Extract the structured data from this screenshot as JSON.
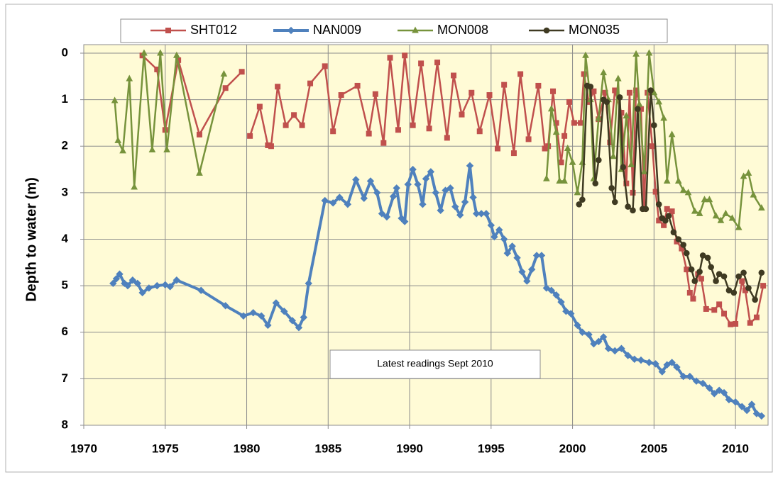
{
  "chart_data": {
    "type": "line",
    "y_label": "Depth to water  (m)",
    "annotation": "Latest readings  Sept 2010",
    "xlim": [
      1970,
      2012
    ],
    "xticks": [
      1970,
      1975,
      1980,
      1985,
      1990,
      1995,
      2000,
      2005,
      2010
    ],
    "ylim": [
      0,
      8
    ],
    "yticks": [
      0,
      1,
      2,
      3,
      4,
      5,
      6,
      7,
      8
    ],
    "y_inverted": true,
    "grid": true,
    "legend": "top",
    "series": [
      {
        "name": "SHT012",
        "color": "#c0504d",
        "marker": "square",
        "x": [
          1973.6,
          1974.5,
          1975.0,
          1975.8,
          1977.1,
          1978.7,
          1979.7,
          null,
          1980.2,
          1980.8,
          1981.3,
          1981.5,
          1981.9,
          1982.4,
          1982.9,
          1983.4,
          1983.9,
          1984.8,
          1985.3,
          1985.8,
          1986.8,
          1987.5,
          1987.9,
          1988.4,
          1988.8,
          1989.3,
          1989.7,
          1990.2,
          1990.7,
          1991.2,
          1991.7,
          1992.3,
          1992.7,
          1993.2,
          1993.8,
          1994.3,
          1994.9,
          1995.4,
          1995.8,
          1996.4,
          1996.8,
          1997.3,
          1997.9,
          1998.3,
          1998.5,
          1998.8,
          1999.0,
          1999.3,
          1999.5,
          1999.8,
          2000.1,
          2000.5,
          2000.7,
          2001.0,
          2001.3,
          2001.6,
          2002.0,
          2002.3,
          2002.6,
          2003.0,
          2003.3,
          2003.5,
          2003.7,
          2003.9,
          2004.2,
          2004.4,
          2004.6,
          2004.9,
          2005.1,
          2005.3,
          2005.6,
          2005.8,
          2006.1,
          2006.4,
          2006.7,
          2007.0,
          2007.2,
          2007.4,
          2007.7,
          2007.9,
          2008.2,
          2008.7,
          2009.0,
          2009.3,
          2009.7,
          2010.0,
          2010.4,
          2010.6,
          2010.9,
          2011.3,
          2011.7
        ],
        "values": [
          0.05,
          0.35,
          1.65,
          0.15,
          1.75,
          0.75,
          0.4,
          null,
          1.78,
          1.15,
          1.98,
          2.0,
          0.72,
          1.55,
          1.33,
          1.55,
          0.65,
          0.28,
          1.68,
          0.9,
          0.7,
          1.73,
          0.88,
          1.93,
          0.1,
          1.65,
          0.05,
          1.55,
          0.22,
          1.62,
          0.2,
          1.82,
          0.48,
          1.32,
          0.85,
          1.68,
          0.9,
          2.05,
          0.68,
          2.15,
          0.45,
          1.85,
          0.7,
          2.05,
          2.0,
          0.82,
          1.5,
          2.35,
          1.78,
          1.05,
          1.5,
          1.5,
          0.45,
          1.05,
          0.82,
          1.42,
          0.85,
          1.92,
          0.8,
          1.28,
          2.8,
          0.85,
          3.0,
          0.8,
          1.2,
          3.35,
          0.85,
          2.0,
          2.98,
          3.6,
          3.7,
          3.35,
          3.4,
          4.05,
          4.2,
          4.65,
          5.15,
          5.28,
          4.75,
          4.85,
          5.5,
          5.52,
          5.4,
          5.6,
          5.83,
          5.82,
          4.9,
          5.1,
          5.8,
          5.68,
          5.0
        ]
      },
      {
        "name": "NAN009",
        "color": "#4f81bd",
        "marker": "diamond",
        "x": [
          1971.8,
          1972.0,
          1972.2,
          1972.5,
          1972.7,
          1973.0,
          1973.3,
          1973.6,
          1974.0,
          1974.5,
          1975.0,
          1975.3,
          1975.7,
          1977.2,
          1978.7,
          1979.8,
          1980.4,
          1980.9,
          1981.3,
          1981.8,
          1982.3,
          1982.8,
          1983.2,
          1983.5,
          1983.8,
          1984.8,
          1985.3,
          1985.7,
          1986.2,
          1986.7,
          1987.2,
          1987.6,
          1988.0,
          1988.3,
          1988.6,
          1989.0,
          1989.2,
          1989.5,
          1989.7,
          1989.9,
          1990.2,
          1990.5,
          1990.8,
          1991.0,
          1991.3,
          1991.6,
          1991.9,
          1992.2,
          1992.5,
          1992.8,
          1993.1,
          1993.4,
          1993.7,
          1993.9,
          1994.1,
          1994.4,
          1994.7,
          1995.0,
          1995.2,
          1995.5,
          1995.8,
          1996.0,
          1996.3,
          1996.6,
          1996.9,
          1997.2,
          1997.5,
          1997.8,
          1998.1,
          1998.4,
          1998.7,
          1999.0,
          1999.3,
          1999.6,
          1999.9,
          2000.3,
          2000.6,
          2001.0,
          2001.3,
          2001.6,
          2001.9,
          2002.2,
          2002.6,
          2003.0,
          2003.4,
          2003.8,
          2004.2,
          2004.7,
          2005.1,
          2005.5,
          2005.8,
          2006.1,
          2006.4,
          2006.8,
          2007.2,
          2007.6,
          2008.0,
          2008.4,
          2008.7,
          2009.0,
          2009.3,
          2009.6,
          2010.0,
          2010.4,
          2010.7,
          2011.0,
          2011.3,
          2011.6
        ],
        "values": [
          4.95,
          4.85,
          4.75,
          4.95,
          5.0,
          4.88,
          4.95,
          5.15,
          5.05,
          5.0,
          4.98,
          5.02,
          4.88,
          5.1,
          5.43,
          5.65,
          5.58,
          5.65,
          5.85,
          5.37,
          5.55,
          5.75,
          5.9,
          5.68,
          4.95,
          3.17,
          3.22,
          3.1,
          3.25,
          2.72,
          3.12,
          2.75,
          3.0,
          3.45,
          3.52,
          3.08,
          2.9,
          3.55,
          3.62,
          2.82,
          2.5,
          2.82,
          3.25,
          2.7,
          2.55,
          3.0,
          3.38,
          2.95,
          2.9,
          3.3,
          3.48,
          3.2,
          2.42,
          3.1,
          3.45,
          3.45,
          3.45,
          3.7,
          3.95,
          3.8,
          4.0,
          4.3,
          4.15,
          4.4,
          4.7,
          4.9,
          4.65,
          4.35,
          4.35,
          5.05,
          5.1,
          5.2,
          5.35,
          5.55,
          5.6,
          5.85,
          6.0,
          6.05,
          6.25,
          6.2,
          6.1,
          6.35,
          6.4,
          6.35,
          6.5,
          6.58,
          6.6,
          6.65,
          6.68,
          6.85,
          6.7,
          6.65,
          6.75,
          6.95,
          6.95,
          7.05,
          7.1,
          7.2,
          7.32,
          7.25,
          7.3,
          7.45,
          7.5,
          7.6,
          7.68,
          7.55,
          7.75,
          7.8
        ]
      },
      {
        "name": "MON008",
        "color": "#77933c",
        "marker": "triangle",
        "x": [
          1971.9,
          1972.1,
          1972.4,
          1972.8,
          1973.1,
          1973.7,
          1974.2,
          1974.7,
          1975.1,
          1975.7,
          1977.1,
          1978.6,
          null,
          1998.4,
          1998.7,
          1999.0,
          1999.2,
          1999.5,
          1999.7,
          2000.0,
          2000.3,
          2000.6,
          2000.8,
          2001.1,
          2001.3,
          2001.6,
          2001.9,
          2002.2,
          2002.5,
          2002.8,
          2003.0,
          2003.3,
          2003.6,
          2003.9,
          2004.1,
          2004.4,
          2004.7,
          2005.0,
          2005.3,
          2005.6,
          2005.8,
          2006.1,
          2006.5,
          2006.8,
          2007.1,
          2007.5,
          2007.8,
          2008.1,
          2008.4,
          2008.8,
          2009.1,
          2009.4,
          2009.8,
          2010.2,
          2010.5,
          2010.8,
          2011.1,
          2011.6
        ],
        "values": [
          1.02,
          1.88,
          2.1,
          0.55,
          2.88,
          0.0,
          2.08,
          0.0,
          2.08,
          0.05,
          2.58,
          0.45,
          null,
          2.7,
          1.2,
          1.7,
          2.75,
          2.75,
          2.05,
          2.35,
          3.0,
          2.35,
          0.05,
          1.0,
          2.7,
          1.4,
          0.42,
          1.0,
          2.22,
          0.55,
          2.5,
          1.35,
          2.4,
          0.02,
          1.1,
          2.55,
          0.0,
          0.85,
          1.05,
          1.4,
          2.75,
          1.75,
          2.75,
          2.95,
          3.0,
          3.4,
          3.45,
          3.15,
          3.15,
          3.5,
          3.6,
          3.45,
          3.55,
          3.75,
          2.65,
          2.58,
          3.05,
          3.33
        ]
      },
      {
        "name": "MON035",
        "color": "#3f3a22",
        "marker": "circle",
        "x": [
          2000.4,
          2000.6,
          2000.9,
          2001.1,
          2001.4,
          2001.6,
          2001.9,
          2002.1,
          2002.4,
          2002.6,
          2002.9,
          2003.1,
          2003.4,
          2003.7,
          2004.0,
          2004.3,
          2004.5,
          2004.8,
          2005.0,
          2005.3,
          2005.5,
          2005.7,
          2005.9,
          2006.2,
          2006.5,
          2006.8,
          2007.0,
          2007.3,
          2007.5,
          2007.8,
          2008.0,
          2008.3,
          2008.5,
          2008.8,
          2009.0,
          2009.3,
          2009.6,
          2009.9,
          2010.2,
          2010.5,
          2010.8,
          2011.2,
          2011.6
        ],
        "values": [
          3.25,
          3.15,
          0.7,
          0.72,
          2.8,
          2.3,
          1.0,
          1.05,
          2.9,
          3.2,
          0.95,
          2.45,
          3.3,
          3.38,
          1.2,
          3.35,
          3.35,
          0.8,
          1.55,
          3.25,
          3.55,
          3.6,
          3.5,
          3.85,
          4.0,
          4.12,
          4.3,
          4.65,
          4.9,
          4.7,
          4.35,
          4.4,
          4.6,
          4.9,
          4.75,
          4.8,
          5.1,
          5.15,
          4.8,
          4.72,
          5.05,
          5.3,
          4.72
        ]
      }
    ]
  }
}
